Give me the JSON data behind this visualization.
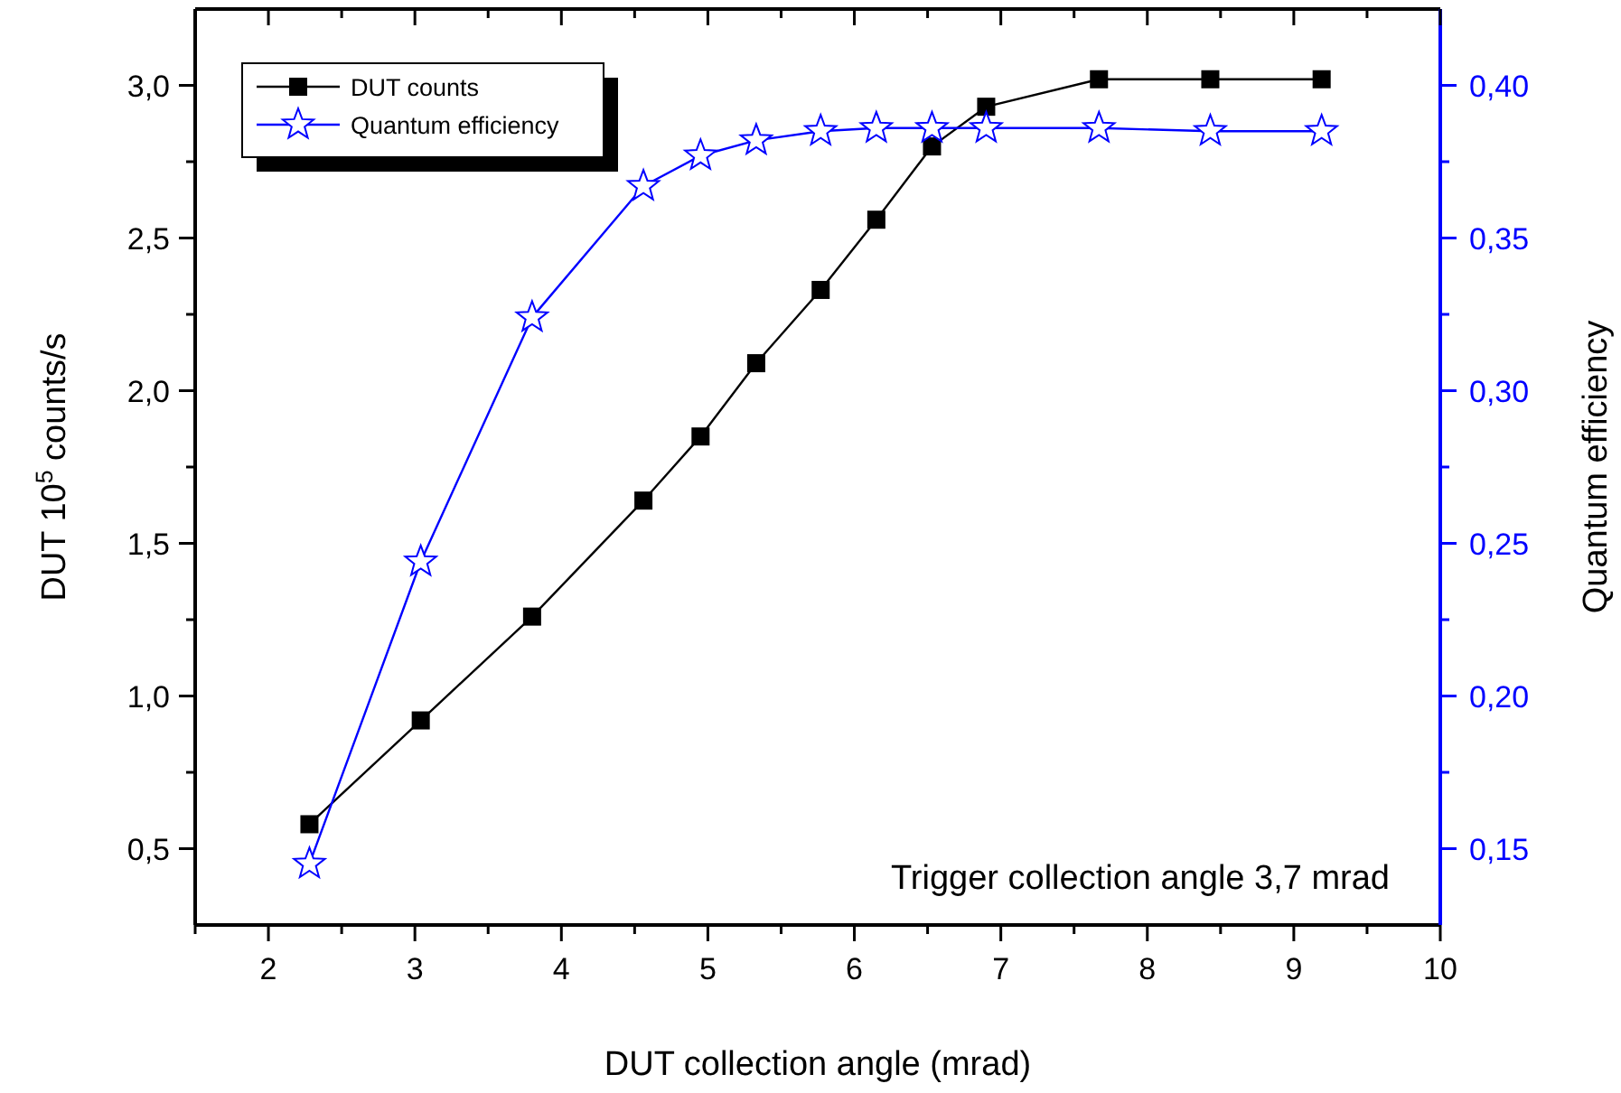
{
  "chart_data": {
    "type": "line",
    "xlabel": "DUT collection angle (mrad)",
    "ylabel": "DUT 10$^{5}$ counts/s",
    "y2label": "Quantum efficiency",
    "x": [
      2.28,
      3.04,
      3.8,
      4.56,
      4.95,
      5.33,
      5.77,
      6.15,
      6.53,
      6.9,
      7.67,
      8.43,
      9.19
    ],
    "series": [
      {
        "name": "DUT counts",
        "color": "#000000",
        "marker": "square",
        "values": [
          0.58,
          0.92,
          1.26,
          1.64,
          1.85,
          2.09,
          2.33,
          2.56,
          2.8,
          2.93,
          3.02,
          3.02,
          3.02
        ]
      },
      {
        "name": "Quantum efficiency",
        "color": "#0000ff",
        "marker": "star",
        "axis": "y2",
        "values": [
          0.145,
          0.244,
          0.324,
          0.367,
          0.377,
          0.382,
          0.385,
          0.386,
          0.386,
          0.386,
          0.386,
          0.385,
          0.385
        ]
      }
    ],
    "xlim": [
      1.5,
      10
    ],
    "xticks": [
      {
        "value": 1.5,
        "label": null
      },
      2,
      {
        "value": 2.5,
        "label": null
      },
      3,
      {
        "value": 3.5,
        "label": null
      },
      4,
      {
        "value": 4.5,
        "label": null
      },
      5,
      {
        "value": 5.5,
        "label": null
      },
      6,
      {
        "value": 6.5,
        "label": null
      },
      7,
      {
        "value": 7.5,
        "label": null
      },
      8,
      {
        "value": 8.5,
        "label": null
      },
      9,
      {
        "value": 9.5,
        "label": null
      },
      10
    ],
    "ylim": [
      0.25,
      3.25
    ],
    "yticks": [
      {
        "value": 0.5,
        "label": "0,5"
      },
      {
        "value": 0.75,
        "label": null
      },
      {
        "value": 1,
        "label": "1,0"
      },
      {
        "value": 1.25,
        "label": null
      },
      {
        "value": 1.5,
        "label": "1,5"
      },
      {
        "value": 1.75,
        "label": null
      },
      {
        "value": 2,
        "label": "2,0"
      },
      {
        "value": 2.25,
        "label": null
      },
      {
        "value": 2.5,
        "label": "2,5"
      },
      {
        "value": 2.75,
        "label": null
      },
      {
        "value": 3,
        "label": "3,0"
      }
    ],
    "y2lim": [
      0.125,
      0.425
    ],
    "y2ticks": [
      {
        "value": 0.15,
        "label": "0,15"
      },
      {
        "value": 0.175,
        "label": null
      },
      {
        "value": 0.2,
        "label": "0,20"
      },
      {
        "value": 0.225,
        "label": null
      },
      {
        "value": 0.25,
        "label": "0,25"
      },
      {
        "value": 0.275,
        "label": null
      },
      {
        "value": 0.3,
        "label": "0,30"
      },
      {
        "value": 0.325,
        "label": null
      },
      {
        "value": 0.35,
        "label": "0,35"
      },
      {
        "value": 0.375,
        "label": null
      },
      {
        "value": 0.4,
        "label": "0,40"
      }
    ],
    "grid": false,
    "legend": "top left",
    "line_style": "solid",
    "annotations": [
      "Trigger collection angle 3,7 mrad"
    ]
  }
}
